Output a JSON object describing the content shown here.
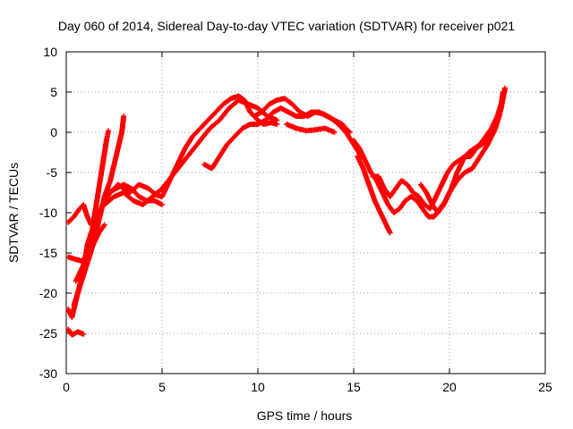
{
  "chart_data": {
    "type": "scatter",
    "title": "Day 060 of 2014, Sidereal Day-to-day VTEC variation (SDTVAR) for receiver p021",
    "xlabel": "GPS time / hours",
    "ylabel": "SDTVAR / TECUs",
    "xlim": [
      0,
      25
    ],
    "ylim": [
      -30,
      10
    ],
    "x_ticks": [
      0,
      5,
      10,
      15,
      20,
      25
    ],
    "y_ticks": [
      -30,
      -25,
      -20,
      -15,
      -10,
      -5,
      0,
      5,
      10
    ],
    "grid": true,
    "marker": "+",
    "color": "#ff0000",
    "series": [
      {
        "name": "s1",
        "points": [
          [
            0.1,
            -24.5
          ],
          [
            0.3,
            -25.2
          ],
          [
            0.6,
            -24.8
          ],
          [
            0.9,
            -25.1
          ]
        ]
      },
      {
        "name": "s2",
        "points": [
          [
            0.1,
            -15.5
          ],
          [
            0.5,
            -15.8
          ],
          [
            0.8,
            -16.0
          ],
          [
            1.0,
            -15.5
          ],
          [
            1.1,
            -14.0
          ],
          [
            1.3,
            -12.5
          ],
          [
            1.6,
            -11.0
          ],
          [
            1.9,
            -9.0
          ],
          [
            2.3,
            -7.5
          ],
          [
            2.7,
            -6.5
          ],
          [
            3.0,
            -7.0
          ],
          [
            3.3,
            -7.5
          ],
          [
            3.8,
            -6.5
          ],
          [
            4.3,
            -7.0
          ],
          [
            4.7,
            -7.8
          ],
          [
            5.0,
            -8.0
          ],
          [
            5.4,
            -6.0
          ],
          [
            5.8,
            -4.0
          ],
          [
            6.2,
            -2.0
          ],
          [
            6.6,
            -0.5
          ],
          [
            7.0,
            0.5
          ],
          [
            7.4,
            1.5
          ],
          [
            7.8,
            2.5
          ],
          [
            8.2,
            3.5
          ],
          [
            8.6,
            4.2
          ],
          [
            9.0,
            4.5
          ],
          [
            9.3,
            4.0
          ],
          [
            9.6,
            2.5
          ],
          [
            10.0,
            1.5
          ],
          [
            10.3,
            1.0
          ],
          [
            10.7,
            1.2
          ],
          [
            11.0,
            1.0
          ]
        ]
      },
      {
        "name": "s3",
        "points": [
          [
            0.1,
            -11.2
          ],
          [
            0.4,
            -10.5
          ],
          [
            0.7,
            -9.5
          ],
          [
            0.9,
            -9.0
          ],
          [
            1.1,
            -10.5
          ],
          [
            1.3,
            -11.5
          ]
        ]
      },
      {
        "name": "s4",
        "points": [
          [
            0.1,
            -22.0
          ],
          [
            0.3,
            -23.0
          ],
          [
            0.5,
            -21.0
          ],
          [
            0.7,
            -19.0
          ],
          [
            0.9,
            -17.0
          ],
          [
            1.1,
            -15.0
          ],
          [
            1.3,
            -13.0
          ],
          [
            1.5,
            -10.0
          ],
          [
            1.7,
            -7.0
          ],
          [
            1.9,
            -4.0
          ],
          [
            2.1,
            -1.0
          ],
          [
            2.2,
            0.2
          ]
        ]
      },
      {
        "name": "s5",
        "points": [
          [
            0.4,
            -21.5
          ],
          [
            0.6,
            -20.0
          ],
          [
            0.8,
            -18.5
          ],
          [
            1.0,
            -17.0
          ],
          [
            1.2,
            -15.5
          ],
          [
            1.4,
            -14.0
          ],
          [
            1.6,
            -12.0
          ],
          [
            1.8,
            -10.0
          ],
          [
            2.0,
            -8.0
          ],
          [
            2.3,
            -6.0
          ],
          [
            2.6,
            -3.0
          ],
          [
            2.9,
            0.0
          ],
          [
            3.0,
            2.0
          ]
        ]
      },
      {
        "name": "s6",
        "points": [
          [
            0.5,
            -18.5
          ],
          [
            0.8,
            -17.0
          ],
          [
            1.1,
            -15.5
          ],
          [
            1.4,
            -14.0
          ],
          [
            1.7,
            -12.5
          ],
          [
            2.0,
            -11.5
          ]
        ]
      },
      {
        "name": "s7",
        "points": [
          [
            1.0,
            -16.0
          ],
          [
            1.3,
            -13.5
          ],
          [
            1.6,
            -11.0
          ],
          [
            1.9,
            -9.0
          ],
          [
            2.2,
            -7.5
          ],
          [
            2.6,
            -7.0
          ],
          [
            3.0,
            -6.5
          ],
          [
            3.4,
            -7.0
          ],
          [
            3.8,
            -8.0
          ],
          [
            4.2,
            -8.5
          ],
          [
            4.6,
            -8.5
          ],
          [
            5.0,
            -9.0
          ]
        ]
      },
      {
        "name": "s8",
        "points": [
          [
            2.0,
            -9.0
          ],
          [
            2.5,
            -8.0
          ],
          [
            3.0,
            -7.5
          ],
          [
            3.5,
            -8.5
          ],
          [
            4.0,
            -9.0
          ],
          [
            4.5,
            -8.0
          ],
          [
            5.0,
            -7.0
          ],
          [
            5.5,
            -5.5
          ],
          [
            6.0,
            -4.0
          ],
          [
            6.5,
            -2.5
          ],
          [
            7.0,
            -1.0
          ],
          [
            7.5,
            0.5
          ],
          [
            8.0,
            1.5
          ],
          [
            8.5,
            3.0
          ],
          [
            9.0,
            4.0
          ],
          [
            9.5,
            3.5
          ],
          [
            10.0,
            3.0
          ],
          [
            10.5,
            2.0
          ],
          [
            11.0,
            1.5
          ]
        ]
      },
      {
        "name": "s9",
        "points": [
          [
            7.2,
            -4.0
          ],
          [
            7.6,
            -4.5
          ],
          [
            8.0,
            -3.0
          ],
          [
            8.4,
            -1.5
          ],
          [
            8.8,
            -0.5
          ],
          [
            9.2,
            0.5
          ],
          [
            9.6,
            1.0
          ],
          [
            10.0,
            1.0
          ],
          [
            10.4,
            1.5
          ],
          [
            10.8,
            2.5
          ],
          [
            11.2,
            3.0
          ],
          [
            11.6,
            2.5
          ],
          [
            12.0,
            2.0
          ],
          [
            12.4,
            2.0
          ],
          [
            12.8,
            2.5
          ],
          [
            13.2,
            2.5
          ],
          [
            13.6,
            2.0
          ],
          [
            14.0,
            1.5
          ],
          [
            14.4,
            1.0
          ],
          [
            14.8,
            0.0
          ]
        ]
      },
      {
        "name": "s10",
        "points": [
          [
            9.8,
            2.0
          ],
          [
            10.2,
            2.5
          ],
          [
            10.6,
            3.5
          ],
          [
            11.0,
            4.0
          ],
          [
            11.4,
            4.2
          ],
          [
            11.8,
            3.5
          ],
          [
            12.2,
            2.5
          ],
          [
            12.6,
            2.0
          ],
          [
            13.0,
            2.5
          ],
          [
            13.4,
            2.3
          ],
          [
            13.8,
            1.8
          ],
          [
            14.2,
            1.0
          ],
          [
            14.6,
            0.0
          ],
          [
            15.0,
            -1.5
          ],
          [
            15.4,
            -3.0
          ]
        ]
      },
      {
        "name": "s11",
        "points": [
          [
            11.5,
            1.0
          ],
          [
            12.0,
            0.5
          ],
          [
            12.5,
            0.2
          ],
          [
            13.0,
            0.3
          ],
          [
            13.5,
            0.5
          ],
          [
            14.0,
            0.0
          ]
        ]
      },
      {
        "name": "s12",
        "points": [
          [
            15.0,
            -1.0
          ],
          [
            15.3,
            -2.0
          ],
          [
            15.6,
            -3.5
          ],
          [
            15.9,
            -5.0
          ],
          [
            16.2,
            -6.0
          ],
          [
            16.5,
            -7.5
          ],
          [
            16.8,
            -9.0
          ],
          [
            17.1,
            -10.0
          ],
          [
            17.4,
            -9.5
          ],
          [
            17.7,
            -8.5
          ],
          [
            18.0,
            -8.0
          ],
          [
            18.3,
            -8.5
          ],
          [
            18.6,
            -9.5
          ],
          [
            18.9,
            -10.5
          ],
          [
            19.2,
            -10.5
          ],
          [
            19.5,
            -9.5
          ],
          [
            19.8,
            -8.5
          ],
          [
            20.1,
            -7.0
          ],
          [
            20.4,
            -5.0
          ],
          [
            20.7,
            -3.5
          ],
          [
            21.0,
            -2.5
          ],
          [
            21.3,
            -2.0
          ],
          [
            21.6,
            -1.5
          ],
          [
            21.9,
            -0.5
          ],
          [
            22.2,
            0.5
          ],
          [
            22.5,
            2.0
          ],
          [
            22.7,
            3.5
          ]
        ]
      },
      {
        "name": "s13",
        "points": [
          [
            15.2,
            -3.0
          ],
          [
            15.5,
            -4.5
          ],
          [
            15.8,
            -6.5
          ],
          [
            16.1,
            -8.5
          ],
          [
            16.4,
            -10.0
          ],
          [
            16.7,
            -11.5
          ],
          [
            16.9,
            -12.5
          ]
        ]
      },
      {
        "name": "s14",
        "points": [
          [
            16.0,
            -5.5
          ],
          [
            16.3,
            -5.5
          ],
          [
            16.6,
            -7.0
          ],
          [
            16.9,
            -8.0
          ],
          [
            17.2,
            -7.0
          ],
          [
            17.5,
            -6.0
          ],
          [
            17.8,
            -6.5
          ],
          [
            18.1,
            -7.5
          ],
          [
            18.4,
            -8.0
          ],
          [
            18.7,
            -9.0
          ],
          [
            19.0,
            -9.5
          ],
          [
            19.3,
            -8.0
          ],
          [
            19.6,
            -6.5
          ],
          [
            19.9,
            -5.0
          ],
          [
            20.2,
            -4.0
          ],
          [
            20.5,
            -3.5
          ],
          [
            20.8,
            -3.0
          ],
          [
            21.1,
            -3.0
          ],
          [
            21.4,
            -2.0
          ],
          [
            21.7,
            -1.5
          ],
          [
            22.0,
            -1.0
          ],
          [
            22.3,
            0.0
          ],
          [
            22.6,
            2.0
          ],
          [
            22.8,
            5.0
          ]
        ]
      },
      {
        "name": "s15",
        "points": [
          [
            18.5,
            -6.5
          ],
          [
            18.8,
            -7.5
          ],
          [
            19.1,
            -9.0
          ],
          [
            19.4,
            -10.0
          ],
          [
            19.7,
            -9.0
          ],
          [
            20.0,
            -7.5
          ],
          [
            20.4,
            -6.0
          ],
          [
            20.8,
            -5.0
          ],
          [
            21.2,
            -4.5
          ],
          [
            21.6,
            -3.0
          ],
          [
            22.0,
            -1.5
          ],
          [
            22.4,
            0.5
          ],
          [
            22.7,
            3.0
          ],
          [
            22.9,
            5.5
          ]
        ]
      }
    ]
  }
}
